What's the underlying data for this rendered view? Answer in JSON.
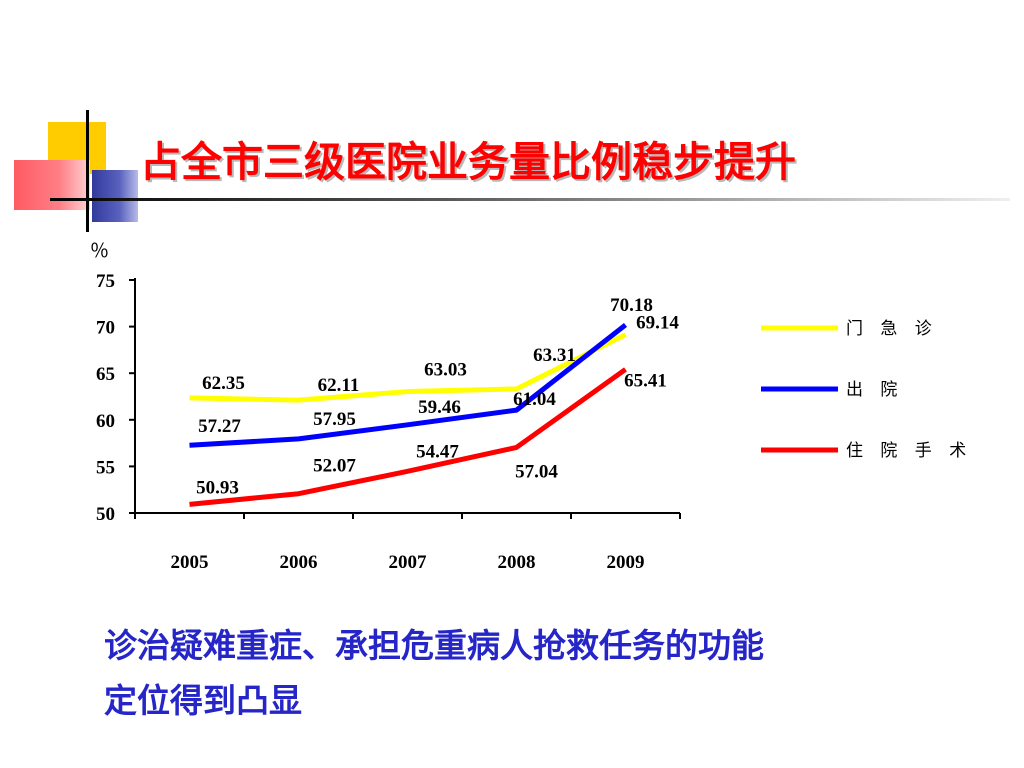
{
  "slide": {
    "title": "占全市三级医院业务量比例稳步提升",
    "caption_line1": "诊治疑难重症、承担危重病人抢救任务的功能",
    "caption_line2": "定位得到凸显"
  },
  "chart_data": {
    "type": "line",
    "title": "",
    "unit": "％",
    "xlabel": "",
    "ylabel": "",
    "x": [
      "2005",
      "2006",
      "2007",
      "2008",
      "2009"
    ],
    "ylim": [
      50,
      75
    ],
    "yticks": [
      "50",
      "55",
      "60",
      "65",
      "70",
      "75"
    ],
    "grid": false,
    "legend_position": "right",
    "series": [
      {
        "name": "门 急 诊",
        "color": "#ffff00",
        "values": [
          62.35,
          62.11,
          63.03,
          63.31,
          69.14
        ],
        "labels": [
          "62.35",
          "62.11",
          "63.03",
          "63.31",
          "69.14"
        ]
      },
      {
        "name": "出 院",
        "color": "#0000ff",
        "values": [
          57.27,
          57.95,
          59.46,
          61.04,
          70.18
        ],
        "labels": [
          "57.27",
          "57.95",
          "59.46",
          "61.04",
          "70.18"
        ]
      },
      {
        "name": "住 院 手 术",
        "color": "#ff0000",
        "values": [
          50.93,
          52.07,
          54.47,
          57.04,
          65.41
        ],
        "labels": [
          "50.93",
          "52.07",
          "54.47",
          "57.04",
          "65.41"
        ]
      }
    ]
  }
}
